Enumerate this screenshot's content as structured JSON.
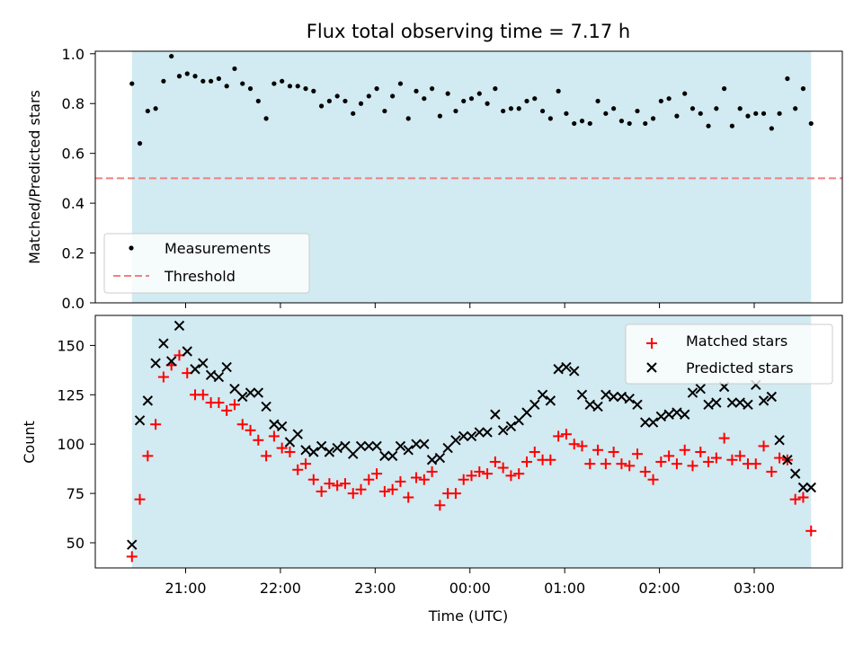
{
  "chart_data": [
    {
      "type": "scatter",
      "title": "Flux total observing time = 7.17 h",
      "ylabel": "Matched/Predicted stars",
      "xlabel": "",
      "ylim": [
        0,
        1.0
      ],
      "yticks": [
        "0.0",
        "0.2",
        "0.4",
        "0.6",
        "0.8",
        "1.0"
      ],
      "observing_window": [
        "20:26",
        "03:36"
      ],
      "threshold": 0.5,
      "legend_position": "lower-left",
      "series": [
        {
          "name": "Measurements",
          "color": "#000000",
          "marker": "dot",
          "x": [
            "20:26",
            "20:31",
            "20:36",
            "20:41",
            "20:46",
            "20:51",
            "20:56",
            "21:01",
            "21:06",
            "21:11",
            "21:16",
            "21:21",
            "21:26",
            "21:31",
            "21:36",
            "21:41",
            "21:46",
            "21:51",
            "21:56",
            "22:01",
            "22:06",
            "22:11",
            "22:16",
            "22:21",
            "22:26",
            "22:31",
            "22:36",
            "22:41",
            "22:46",
            "22:51",
            "22:56",
            "23:01",
            "23:06",
            "23:11",
            "23:16",
            "23:21",
            "23:26",
            "23:31",
            "23:36",
            "23:41",
            "23:46",
            "23:51",
            "23:56",
            "00:01",
            "00:06",
            "00:11",
            "00:16",
            "00:21",
            "00:26",
            "00:31",
            "00:36",
            "00:41",
            "00:46",
            "00:51",
            "00:56",
            "01:01",
            "01:06",
            "01:11",
            "01:16",
            "01:21",
            "01:26",
            "01:31",
            "01:36",
            "01:41",
            "01:46",
            "01:51",
            "01:56",
            "02:01",
            "02:06",
            "02:11",
            "02:16",
            "02:21",
            "02:26",
            "02:31",
            "02:36",
            "02:41",
            "02:46",
            "02:51",
            "02:56",
            "03:01",
            "03:06",
            "03:11",
            "03:16",
            "03:21",
            "03:26",
            "03:31",
            "03:36"
          ],
          "y": [
            0.88,
            0.64,
            0.77,
            0.78,
            0.89,
            0.99,
            0.91,
            0.92,
            0.91,
            0.89,
            0.89,
            0.9,
            0.87,
            0.94,
            0.88,
            0.86,
            0.81,
            0.74,
            0.88,
            0.89,
            0.87,
            0.87,
            0.86,
            0.85,
            0.79,
            0.81,
            0.83,
            0.81,
            0.76,
            0.8,
            0.83,
            0.86,
            0.77,
            0.83,
            0.88,
            0.74,
            0.85,
            0.82,
            0.86,
            0.75,
            0.84,
            0.77,
            0.81,
            0.82,
            0.84,
            0.8,
            0.86,
            0.77,
            0.78,
            0.78,
            0.81,
            0.82,
            0.77,
            0.74,
            0.85,
            0.76,
            0.72,
            0.73,
            0.72,
            0.81,
            0.76,
            0.78,
            0.73,
            0.72,
            0.77,
            0.72,
            0.74,
            0.81,
            0.82,
            0.75,
            0.84,
            0.78,
            0.76,
            0.71,
            0.78,
            0.86,
            0.71,
            0.78,
            0.75,
            0.76,
            0.76,
            0.7,
            0.76,
            0.9,
            0.78,
            0.86,
            0.72
          ]
        },
        {
          "name": "Threshold",
          "color": "#f08080",
          "style": "dashed"
        }
      ]
    },
    {
      "type": "scatter",
      "title": "",
      "ylabel": "Count",
      "xlabel": "Time (UTC)",
      "yticks": [
        "50",
        "75",
        "100",
        "125",
        "150"
      ],
      "xticks": [
        "21:00",
        "22:00",
        "23:00",
        "00:00",
        "01:00",
        "02:00",
        "03:00"
      ],
      "legend_position": "upper-right",
      "x": [
        "20:26",
        "20:31",
        "20:36",
        "20:41",
        "20:46",
        "20:51",
        "20:56",
        "21:01",
        "21:06",
        "21:11",
        "21:16",
        "21:21",
        "21:26",
        "21:31",
        "21:36",
        "21:41",
        "21:46",
        "21:51",
        "21:56",
        "22:01",
        "22:06",
        "22:11",
        "22:16",
        "22:21",
        "22:26",
        "22:31",
        "22:36",
        "22:41",
        "22:46",
        "22:51",
        "22:56",
        "23:01",
        "23:06",
        "23:11",
        "23:16",
        "23:21",
        "23:26",
        "23:31",
        "23:36",
        "23:41",
        "23:46",
        "23:51",
        "23:56",
        "00:01",
        "00:06",
        "00:11",
        "00:16",
        "00:21",
        "00:26",
        "00:31",
        "00:36",
        "00:41",
        "00:46",
        "00:51",
        "00:56",
        "01:01",
        "01:06",
        "01:11",
        "01:16",
        "01:21",
        "01:26",
        "01:31",
        "01:36",
        "01:41",
        "01:46",
        "01:51",
        "01:56",
        "02:01",
        "02:06",
        "02:11",
        "02:16",
        "02:21",
        "02:26",
        "02:31",
        "02:36",
        "02:41",
        "02:46",
        "02:51",
        "02:56",
        "03:01",
        "03:06",
        "03:11",
        "03:16",
        "03:21",
        "03:26",
        "03:31",
        "03:36"
      ],
      "series": [
        {
          "name": "Matched stars",
          "color": "#ff0000",
          "marker": "plus",
          "values": [
            43,
            72,
            94,
            110,
            134,
            140,
            145,
            136,
            125,
            125,
            121,
            121,
            117,
            120,
            110,
            107,
            102,
            94,
            104,
            98,
            96,
            87,
            90,
            82,
            76,
            80,
            79,
            80,
            75,
            77,
            82,
            85,
            76,
            77,
            81,
            73,
            83,
            82,
            86,
            69,
            75,
            75,
            82,
            84,
            86,
            85,
            91,
            88,
            84,
            85,
            91,
            96,
            92,
            92,
            104,
            105,
            100,
            99,
            90,
            97,
            90,
            96,
            90,
            89,
            95,
            86,
            82,
            91,
            94,
            90,
            97,
            89,
            96,
            91,
            93,
            103,
            92,
            94,
            90,
            90,
            99,
            86,
            93,
            92,
            72,
            73,
            56
          ]
        },
        {
          "name": "Predicted stars",
          "color": "#000000",
          "marker": "x",
          "values": [
            49,
            112,
            122,
            141,
            151,
            142,
            160,
            147,
            138,
            141,
            135,
            134,
            139,
            128,
            124,
            126,
            126,
            119,
            110,
            109,
            101,
            105,
            97,
            96,
            99,
            96,
            98,
            99,
            95,
            99,
            99,
            99,
            94,
            94,
            99,
            97,
            100,
            100,
            92,
            93,
            98,
            102,
            104,
            104,
            106,
            106,
            115,
            107,
            109,
            112,
            116,
            120,
            125,
            122,
            138,
            139,
            137,
            125,
            120,
            119,
            125,
            124,
            124,
            123,
            120,
            111,
            111,
            114,
            115,
            116,
            115,
            126,
            128,
            120,
            121,
            129,
            121,
            121,
            120,
            130,
            122,
            124,
            102,
            92,
            85,
            78,
            78
          ]
        }
      ]
    }
  ]
}
